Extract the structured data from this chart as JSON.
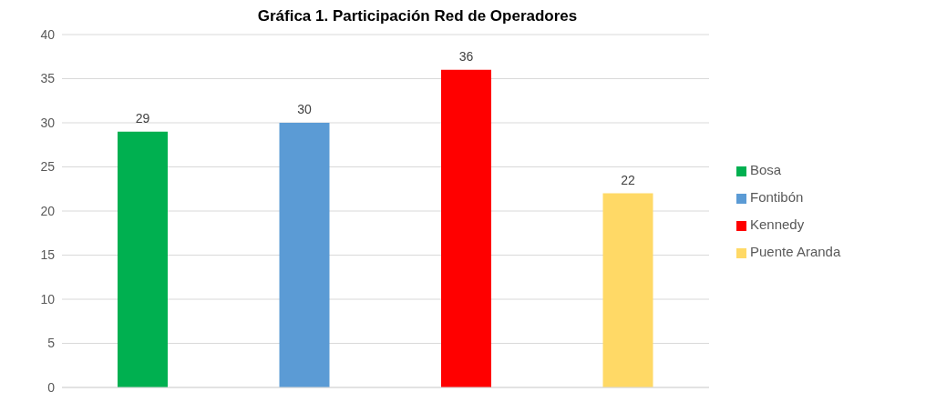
{
  "chart_data": {
    "type": "bar",
    "title": "Gráfica 1. Participación Red de Operadores",
    "categories": [
      null,
      null,
      null,
      null
    ],
    "series": [
      {
        "name": "Bosa",
        "color": "#00b050",
        "values": [
          29,
          null,
          null,
          null
        ]
      },
      {
        "name": "Fontibón",
        "color": "#5b9bd5",
        "values": [
          null,
          30,
          null,
          null
        ]
      },
      {
        "name": "Kennedy",
        "color": "#ff0000",
        "values": [
          null,
          null,
          36,
          null
        ]
      },
      {
        "name": "Puente Aranda",
        "color": "#ffd966",
        "values": [
          null,
          null,
          null,
          22
        ]
      }
    ],
    "ylim": [
      0,
      40
    ],
    "yticks": [
      0,
      5,
      10,
      15,
      20,
      25,
      30,
      35,
      40
    ],
    "grid": "y",
    "legend": "right",
    "data_labels": true
  }
}
